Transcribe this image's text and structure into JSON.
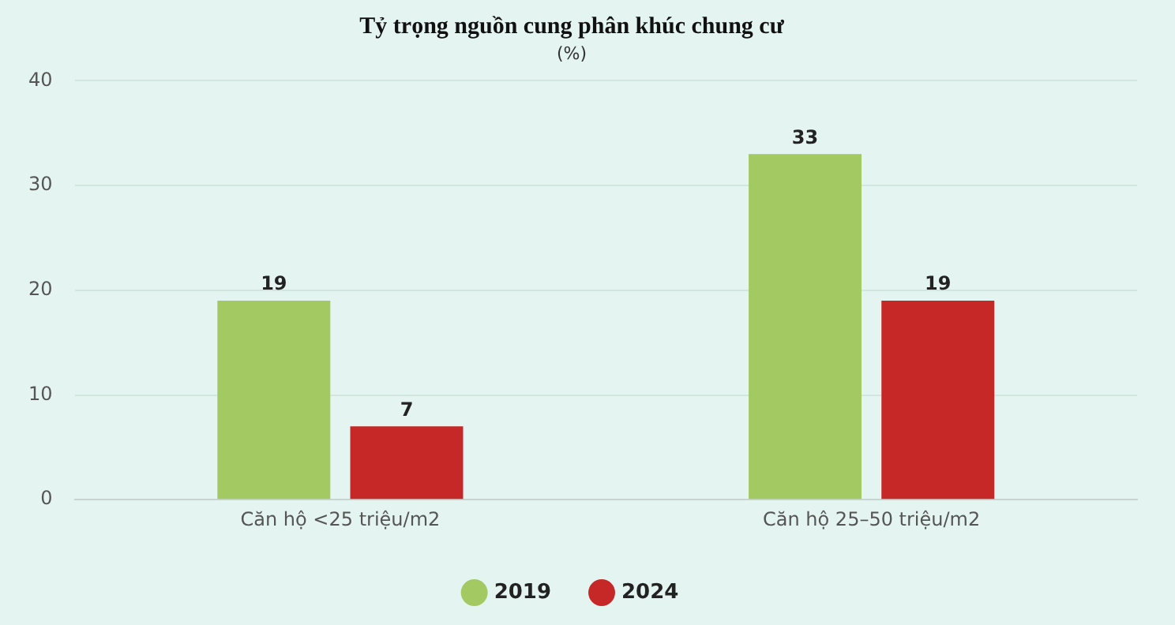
{
  "chart_data": {
    "type": "bar",
    "title": "Tỷ trọng nguồn cung phân khúc chung cư",
    "subtitle": "(%)",
    "categories": [
      "Căn hộ <25 triệu/m2",
      "Căn hộ 25–50 triệu/m2"
    ],
    "series": [
      {
        "name": "2019",
        "color": "#a3c963",
        "values": [
          19,
          33
        ]
      },
      {
        "name": "2024",
        "color": "#c62828",
        "values": [
          7,
          19
        ]
      }
    ],
    "ylim": [
      0,
      40
    ],
    "yticks": [
      0,
      10,
      20,
      30,
      40
    ],
    "grid": "y",
    "legend": "bottom",
    "data_labels": true
  }
}
